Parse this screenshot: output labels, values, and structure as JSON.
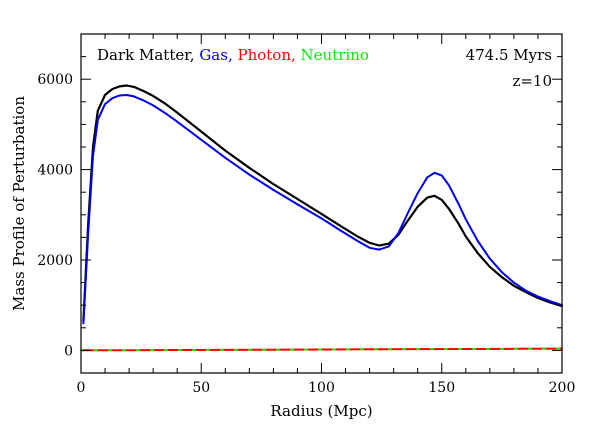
{
  "chart_data": {
    "type": "line",
    "xlabel": "Radius (Mpc)",
    "ylabel": "Mass Profile of Perturbation",
    "xlim": [
      0,
      200
    ],
    "ylim": [
      -500,
      7000
    ],
    "x_ticks": [
      0,
      50,
      100,
      150,
      200
    ],
    "y_ticks": [
      0,
      2000,
      4000,
      6000
    ],
    "grid": false,
    "legend_placement": "top",
    "annotations": [
      "474.5 Myrs",
      "z=10"
    ],
    "series": [
      {
        "name": "Dark Matter",
        "color": "#000000",
        "x": [
          1,
          3,
          5,
          7,
          10,
          13,
          16,
          19,
          22,
          26,
          30,
          35,
          40,
          50,
          60,
          70,
          80,
          90,
          100,
          108,
          115,
          120,
          124,
          128,
          132,
          136,
          140,
          144,
          147,
          150,
          153,
          157,
          160,
          165,
          170,
          175,
          180,
          185,
          190,
          195,
          200
        ],
        "values": [
          650,
          2800,
          4500,
          5300,
          5650,
          5780,
          5840,
          5860,
          5830,
          5740,
          5630,
          5460,
          5260,
          4840,
          4420,
          4040,
          3680,
          3350,
          3020,
          2750,
          2520,
          2380,
          2320,
          2360,
          2560,
          2880,
          3180,
          3380,
          3420,
          3330,
          3130,
          2800,
          2520,
          2150,
          1850,
          1620,
          1430,
          1290,
          1160,
          1060,
          980
        ]
      },
      {
        "name": "Gas",
        "color": "#0000ee",
        "x": [
          1,
          3,
          5,
          7,
          10,
          13,
          16,
          19,
          22,
          26,
          30,
          35,
          40,
          50,
          60,
          70,
          80,
          90,
          100,
          108,
          115,
          120,
          124,
          128,
          132,
          136,
          140,
          144,
          147,
          150,
          153,
          157,
          160,
          165,
          170,
          175,
          180,
          185,
          190,
          195,
          200
        ],
        "values": [
          600,
          2600,
          4300,
          5100,
          5450,
          5580,
          5640,
          5650,
          5620,
          5530,
          5420,
          5250,
          5060,
          4660,
          4260,
          3890,
          3550,
          3230,
          2920,
          2650,
          2420,
          2270,
          2230,
          2300,
          2600,
          3050,
          3480,
          3830,
          3930,
          3870,
          3650,
          3240,
          2900,
          2420,
          2030,
          1730,
          1500,
          1320,
          1190,
          1090,
          1000
        ]
      },
      {
        "name": "Photon",
        "color": "#ff0000",
        "x": [
          0,
          20,
          40,
          60,
          80,
          100,
          120,
          140,
          160,
          180,
          200
        ],
        "values": [
          2,
          5,
          9,
          12,
          16,
          20,
          24,
          28,
          32,
          36,
          40
        ]
      },
      {
        "name": "Neutrino",
        "color": "#00ff00",
        "x": [
          0,
          20,
          40,
          60,
          80,
          100,
          120,
          140,
          160,
          180,
          200
        ],
        "values": [
          2,
          5,
          9,
          12,
          16,
          20,
          24,
          28,
          32,
          36,
          40
        ]
      }
    ]
  }
}
